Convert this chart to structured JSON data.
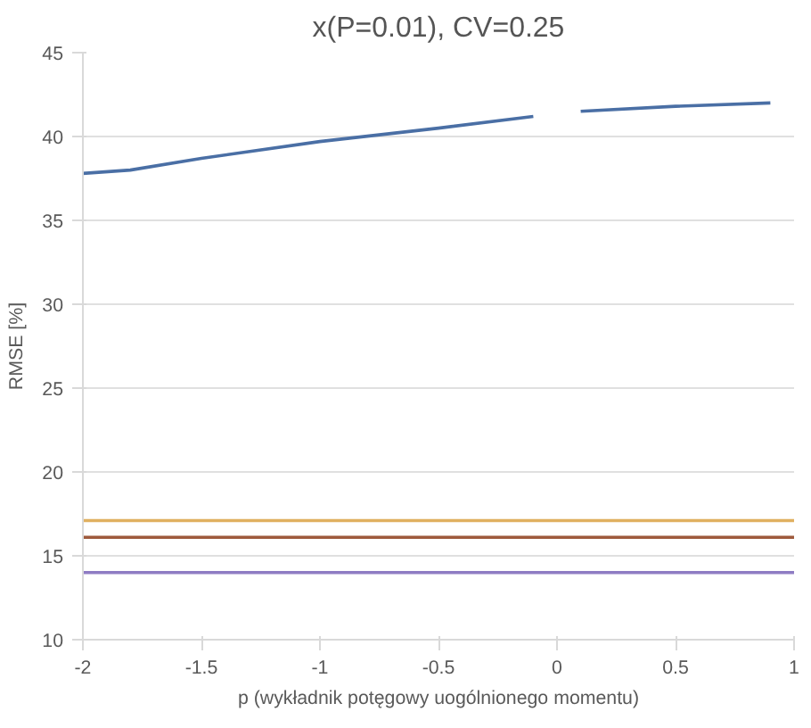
{
  "chart_data": {
    "type": "line",
    "title": "x(P=0.01), CV=0.25",
    "xlabel": "p (wykładnik potęgowy uogólnionego momentu)",
    "ylabel": "RMSE [%]",
    "x": [
      -2,
      -1.8,
      -1.5,
      -1,
      -0.5,
      -0.1,
      0,
      0.1,
      0.5,
      0.9,
      1
    ],
    "series": [
      {
        "color": "#4a6fa5",
        "values": [
          37.8,
          38.0,
          38.7,
          39.7,
          40.5,
          41.2,
          null,
          41.5,
          41.8,
          42.0,
          null
        ]
      },
      {
        "color": "#e0b060",
        "values": [
          17.1,
          17.1,
          17.1,
          17.1,
          17.1,
          17.1,
          17.1,
          17.1,
          17.1,
          17.1,
          17.1
        ]
      },
      {
        "color": "#9e5a3c",
        "values": [
          16.1,
          16.1,
          16.1,
          16.1,
          16.1,
          16.1,
          16.1,
          16.1,
          16.1,
          16.1,
          16.1
        ]
      },
      {
        "color": "#8e7cc3",
        "values": [
          14.0,
          14.0,
          14.0,
          14.0,
          14.0,
          14.0,
          14.0,
          14.0,
          14.0,
          14.0,
          14.0
        ]
      }
    ],
    "xlim": [
      -2,
      1
    ],
    "xticks": [
      -2,
      -1.5,
      -1,
      -0.5,
      0,
      0.5,
      1
    ],
    "ylim": [
      10,
      45
    ],
    "yticks": [
      10,
      15,
      20,
      25,
      30,
      35,
      40,
      45
    ],
    "grid": "y",
    "marker": "none",
    "line_style": "solid"
  }
}
